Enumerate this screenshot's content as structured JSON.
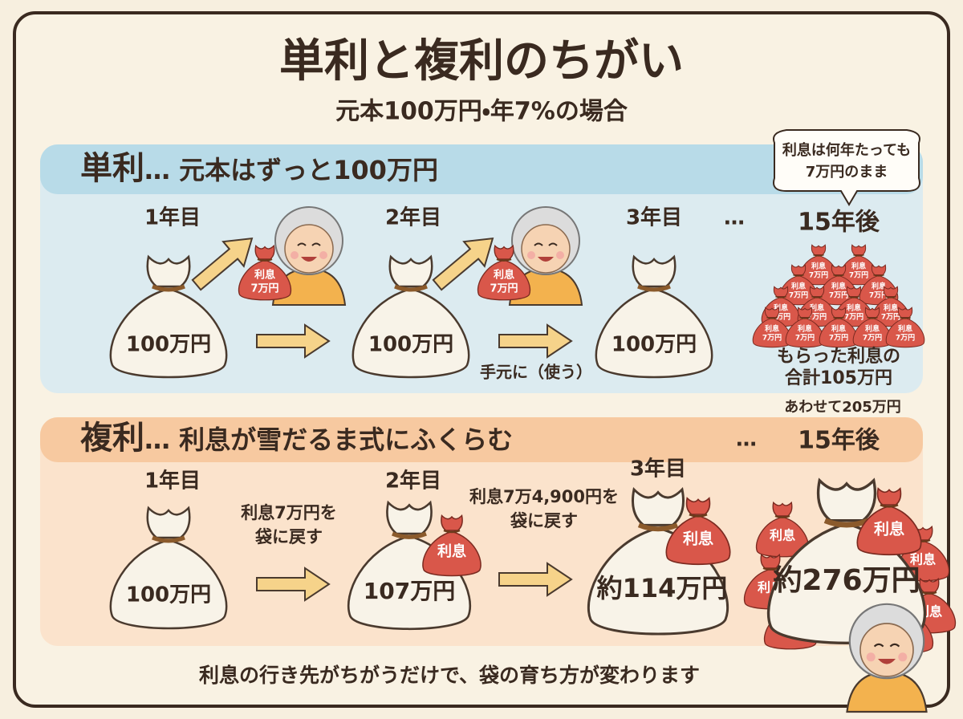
{
  "title": "単利と複利のちがい",
  "subtitle": "元本100万円・年7%の場合",
  "simple": {
    "label": "単利",
    "description": "… 元本はずっと100万円",
    "bubble": [
      "利息は何年たっても",
      "7万円のまま"
    ],
    "steps": [
      {
        "year": "1年目",
        "bag": "100万円"
      },
      {
        "year": "2年目",
        "bag": "100万円"
      },
      {
        "year": "3年目",
        "bag": "100万円"
      }
    ],
    "ellipsis": "…",
    "final_year": "15年後",
    "interest_bag": [
      "利息",
      "7万円"
    ],
    "use_note": "手元に（使う）",
    "total": [
      "もらった利息の",
      "合計105万円"
    ],
    "combined": "あわせて205万円"
  },
  "compound": {
    "label": "複利",
    "description": "… 利息が雪だるま式にふくらむ",
    "ellipsis": "…",
    "final_year": "15年後",
    "steps": [
      {
        "year": "1年目",
        "bag": "100万円"
      },
      {
        "year": "2年目",
        "bag": "107万円"
      },
      {
        "year": "3年目",
        "bag": "約114万円"
      }
    ],
    "final_bag": "約276万円",
    "interest_tag": "利息",
    "notes": [
      [
        "利息7万円を",
        "袋に戻す"
      ],
      [
        "利息7万4,900円を",
        "袋に戻す"
      ]
    ]
  },
  "footer": "利息の行き先がちがうだけで、袋の育ち方が変わります"
}
